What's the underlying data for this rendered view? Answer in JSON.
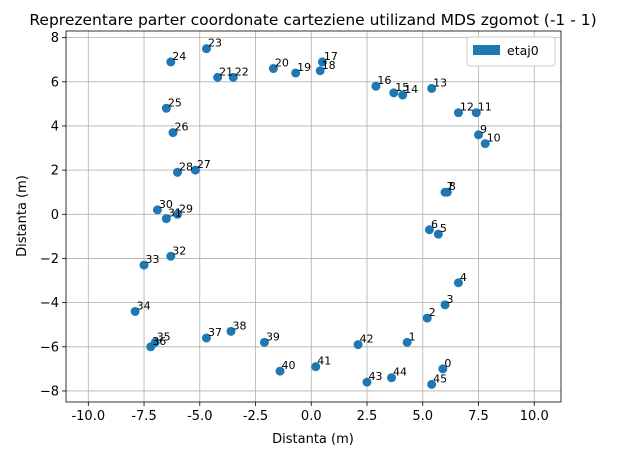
{
  "chart_data": {
    "type": "scatter",
    "title": "Reprezentare parter coordonate carteziene utilizand MDS zgomot (-1 - 1)",
    "xlabel": "Distanta (m)",
    "ylabel": "Distanta (m)",
    "xlim": [
      -11.0,
      11.2
    ],
    "ylim": [
      -8.5,
      8.3
    ],
    "xticks": [
      -10.0,
      -7.5,
      -5.0,
      -2.5,
      0.0,
      2.5,
      5.0,
      7.5,
      10.0
    ],
    "yticks": [
      -8,
      -6,
      -4,
      -2,
      0,
      2,
      4,
      6,
      8
    ],
    "grid": true,
    "legend_position": "top-right",
    "series": [
      {
        "name": "etaj0",
        "color": "#1f77b4",
        "points": [
          {
            "label": "0",
            "x": 5.9,
            "y": -7.0
          },
          {
            "label": "1",
            "x": 4.3,
            "y": -5.8
          },
          {
            "label": "2",
            "x": 5.2,
            "y": -4.7
          },
          {
            "label": "3",
            "x": 6.0,
            "y": -4.1
          },
          {
            "label": "4",
            "x": 6.6,
            "y": -3.1
          },
          {
            "label": "5",
            "x": 5.7,
            "y": -0.9
          },
          {
            "label": "6",
            "x": 5.3,
            "y": -0.7
          },
          {
            "label": "7",
            "x": 6.0,
            "y": 1.0
          },
          {
            "label": "8",
            "x": 6.1,
            "y": 1.0
          },
          {
            "label": "9",
            "x": 7.5,
            "y": 3.6
          },
          {
            "label": "10",
            "x": 7.8,
            "y": 3.2
          },
          {
            "label": "11",
            "x": 7.4,
            "y": 4.6
          },
          {
            "label": "12",
            "x": 6.6,
            "y": 4.6
          },
          {
            "label": "13",
            "x": 5.4,
            "y": 5.7
          },
          {
            "label": "14",
            "x": 4.1,
            "y": 5.4
          },
          {
            "label": "15",
            "x": 3.7,
            "y": 5.5
          },
          {
            "label": "16",
            "x": 2.9,
            "y": 5.8
          },
          {
            "label": "17",
            "x": 0.5,
            "y": 6.9
          },
          {
            "label": "18",
            "x": 0.4,
            "y": 6.5
          },
          {
            "label": "19",
            "x": -0.7,
            "y": 6.4
          },
          {
            "label": "20",
            "x": -1.7,
            "y": 6.6
          },
          {
            "label": "21",
            "x": -4.2,
            "y": 6.2
          },
          {
            "label": "22",
            "x": -3.5,
            "y": 6.2
          },
          {
            "label": "23",
            "x": -4.7,
            "y": 7.5
          },
          {
            "label": "24",
            "x": -6.3,
            "y": 6.9
          },
          {
            "label": "25",
            "x": -6.5,
            "y": 4.8
          },
          {
            "label": "26",
            "x": -6.2,
            "y": 3.7
          },
          {
            "label": "27",
            "x": -5.2,
            "y": 2.0
          },
          {
            "label": "28",
            "x": -6.0,
            "y": 1.9
          },
          {
            "label": "29",
            "x": -6.0,
            "y": 0.0
          },
          {
            "label": "30",
            "x": -6.9,
            "y": 0.2
          },
          {
            "label": "31",
            "x": -6.5,
            "y": -0.2
          },
          {
            "label": "32",
            "x": -6.3,
            "y": -1.9
          },
          {
            "label": "33",
            "x": -7.5,
            "y": -2.3
          },
          {
            "label": "34",
            "x": -7.9,
            "y": -4.4
          },
          {
            "label": "35",
            "x": -7.0,
            "y": -5.8
          },
          {
            "label": "36",
            "x": -7.2,
            "y": -6.0
          },
          {
            "label": "37",
            "x": -4.7,
            "y": -5.6
          },
          {
            "label": "38",
            "x": -3.6,
            "y": -5.3
          },
          {
            "label": "39",
            "x": -2.1,
            "y": -5.8
          },
          {
            "label": "40",
            "x": -1.4,
            "y": -7.1
          },
          {
            "label": "41",
            "x": 0.2,
            "y": -6.9
          },
          {
            "label": "42",
            "x": 2.1,
            "y": -5.9
          },
          {
            "label": "43",
            "x": 2.5,
            "y": -7.6
          },
          {
            "label": "44",
            "x": 3.6,
            "y": -7.4
          },
          {
            "label": "45",
            "x": 5.4,
            "y": -7.7
          }
        ]
      }
    ]
  }
}
